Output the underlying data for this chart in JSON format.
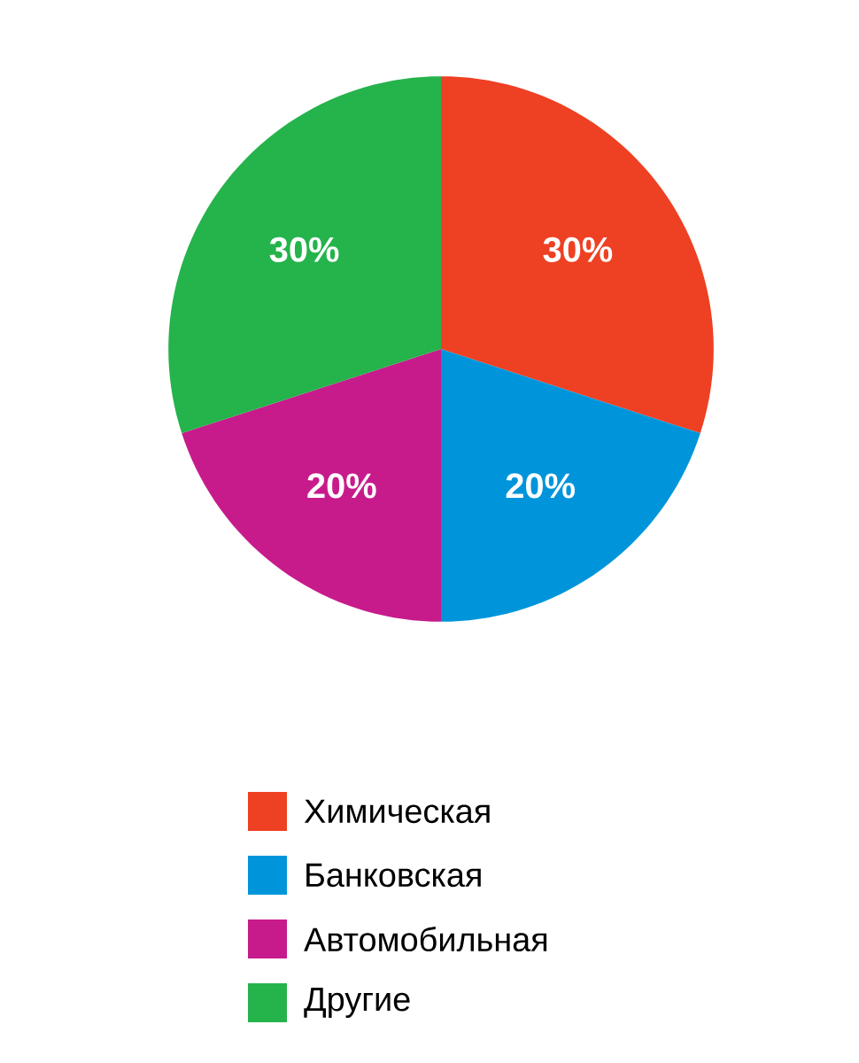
{
  "chart_data": {
    "type": "pie",
    "categories": [
      "Химическая",
      "Банковская",
      "Автомобильная",
      "Другие"
    ],
    "values": [
      30,
      20,
      20,
      30
    ],
    "value_labels": [
      "30%",
      "20%",
      "20%",
      "30%"
    ],
    "colors": [
      "#ee4023",
      "#0095da",
      "#c71b8c",
      "#25b34b"
    ],
    "legend": "bottom"
  }
}
